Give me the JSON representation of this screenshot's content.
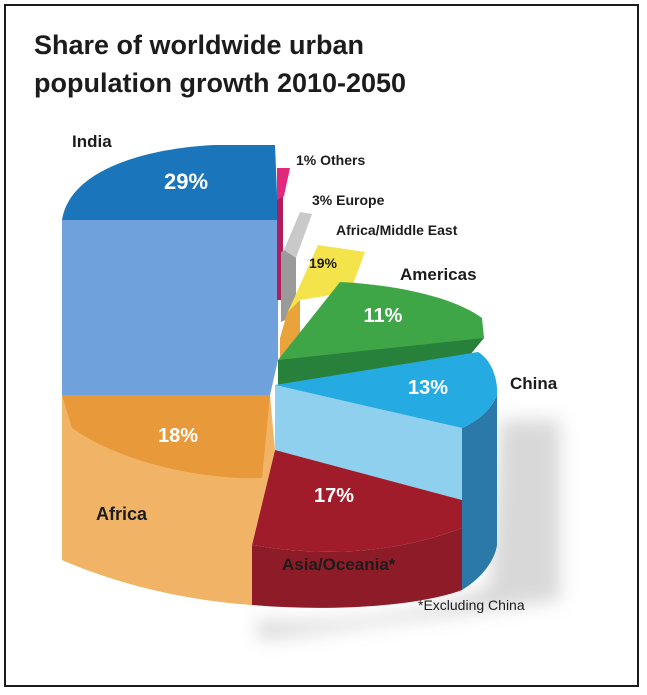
{
  "chart_data": {
    "type": "pie",
    "title": "Share of worldwide urban population growth 2010-2050",
    "footnote": "*Excluding China",
    "slices": [
      {
        "name": "India",
        "value": 29,
        "value_label": "29%",
        "color": "#1b75bb",
        "side_color": "#6fa1dc"
      },
      {
        "name": "Others",
        "value": 1,
        "value_label": "1%",
        "color": "#e2287a",
        "side_color": "#b01c5e"
      },
      {
        "name": "Europe",
        "value": 3,
        "value_label": "3%",
        "color": "#c9c9c9",
        "side_color": "#9a9a9a"
      },
      {
        "name": "Africa/Middle East",
        "value": 19,
        "value_label": "19%",
        "color": "#f4e34a",
        "side_color": "#e8a43a"
      },
      {
        "name": "Americas",
        "value": 11,
        "value_label": "11%",
        "color": "#3fa647",
        "side_color": "#27813a"
      },
      {
        "name": "China",
        "value": 13,
        "value_label": "13%",
        "color": "#25aae1",
        "side_color": "#8fd0ef"
      },
      {
        "name": "Asia/Oceania*",
        "value": 17,
        "value_label": "17%",
        "color": "#a01c2b",
        "side_color": "#8e1c28"
      },
      {
        "name": "Africa",
        "value": 18,
        "value_label": "18%",
        "color": "#e8993a",
        "side_color": "#f1b467"
      }
    ]
  },
  "labels": {
    "india": "India",
    "india_value": "29%",
    "others": "1% Others",
    "europe": "3% Europe",
    "africa_middle_east": "Africa/Middle East",
    "africa_middle_east_value": "19%",
    "americas": "Americas",
    "americas_value": "11%",
    "china": "China",
    "china_value": "13%",
    "asia_oceania": "Asia/Oceania*",
    "asia_oceania_value": "17%",
    "africa": "Africa",
    "africa_value": "18%"
  }
}
